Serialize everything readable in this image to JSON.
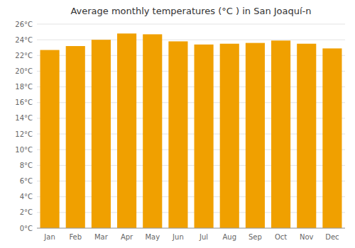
{
  "chart_data": {
    "type": "bar",
    "title": "Average monthly temperatures (°C ) in San Joaquí-n",
    "categories": [
      "Jan",
      "Feb",
      "Mar",
      "Apr",
      "May",
      "Jun",
      "Jul",
      "Aug",
      "Sep",
      "Oct",
      "Nov",
      "Dec"
    ],
    "values": [
      22.7,
      23.2,
      24.0,
      24.8,
      24.7,
      23.8,
      23.4,
      23.5,
      23.6,
      23.9,
      23.5,
      22.9
    ],
    "color": "#F0A000",
    "ylim": [
      0,
      26
    ],
    "yticks": [
      {
        "value": 0,
        "label": "0°C"
      },
      {
        "value": 2,
        "label": "2°C"
      },
      {
        "value": 4,
        "label": "4°C"
      },
      {
        "value": 6,
        "label": "6°C"
      },
      {
        "value": 8,
        "label": "8°C"
      },
      {
        "value": 10,
        "label": "10°C"
      },
      {
        "value": 12,
        "label": "12°C"
      },
      {
        "value": 14,
        "label": "14°C"
      },
      {
        "value": 16,
        "label": "16°C"
      },
      {
        "value": 18,
        "label": "18°C"
      },
      {
        "value": 20,
        "label": "20°C"
      },
      {
        "value": 22,
        "label": "22°C"
      },
      {
        "value": 24,
        "label": "24°C"
      },
      {
        "value": 26,
        "label": "26°C"
      }
    ],
    "grid": true
  }
}
